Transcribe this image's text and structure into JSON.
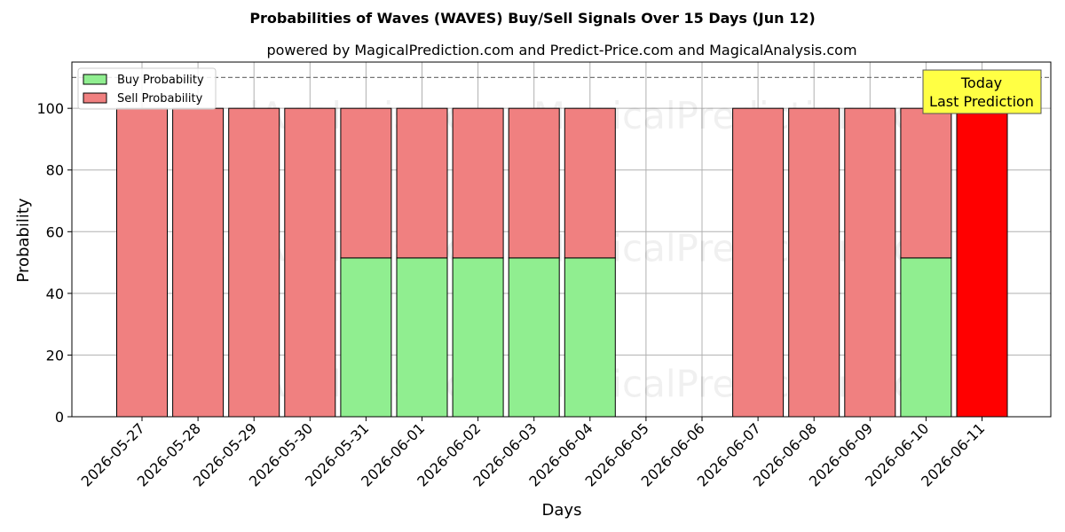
{
  "chart_data": {
    "type": "bar",
    "stacked": true,
    "title": "Probabilities of Waves (WAVES) Buy/Sell Signals Over 15 Days (Jun 12)",
    "subtitle": "powered by MagicalPrediction.com and Predict-Price.com and MagicalAnalysis.com",
    "xlabel": "Days",
    "ylabel": "Probability",
    "ylim": [
      0,
      115
    ],
    "yticks": [
      0,
      20,
      40,
      60,
      80,
      100
    ],
    "grid": true,
    "legend_position": "top-left",
    "reference_line": 110,
    "categories": [
      "2026-05-27",
      "2026-05-28",
      "2026-05-29",
      "2026-05-30",
      "2026-05-31",
      "2026-06-01",
      "2026-06-02",
      "2026-06-03",
      "2026-06-04",
      "2026-06-05",
      "2026-06-06",
      "2026-06-07",
      "2026-06-08",
      "2026-06-09",
      "2026-06-10",
      "2026-06-11"
    ],
    "series": [
      {
        "name": "Buy Probability",
        "color": "#90ee90",
        "values": [
          0,
          0,
          0,
          0,
          51.5,
          51.5,
          51.5,
          51.5,
          51.5,
          null,
          null,
          0,
          0,
          0,
          51.5,
          0
        ]
      },
      {
        "name": "Sell Probability",
        "color": "#f08080",
        "values": [
          100,
          100,
          100,
          100,
          48.5,
          48.5,
          48.5,
          48.5,
          48.5,
          null,
          null,
          100,
          100,
          100,
          48.5,
          100
        ]
      }
    ],
    "highlight": {
      "category": "2026-06-11",
      "color": "#ff0000",
      "label_lines": [
        "Today",
        "Last Prediction"
      ],
      "label_bg": "#ffff44"
    },
    "watermarks": [
      "MagicalAnalysis.com",
      "MagicalPrediction.com"
    ]
  }
}
